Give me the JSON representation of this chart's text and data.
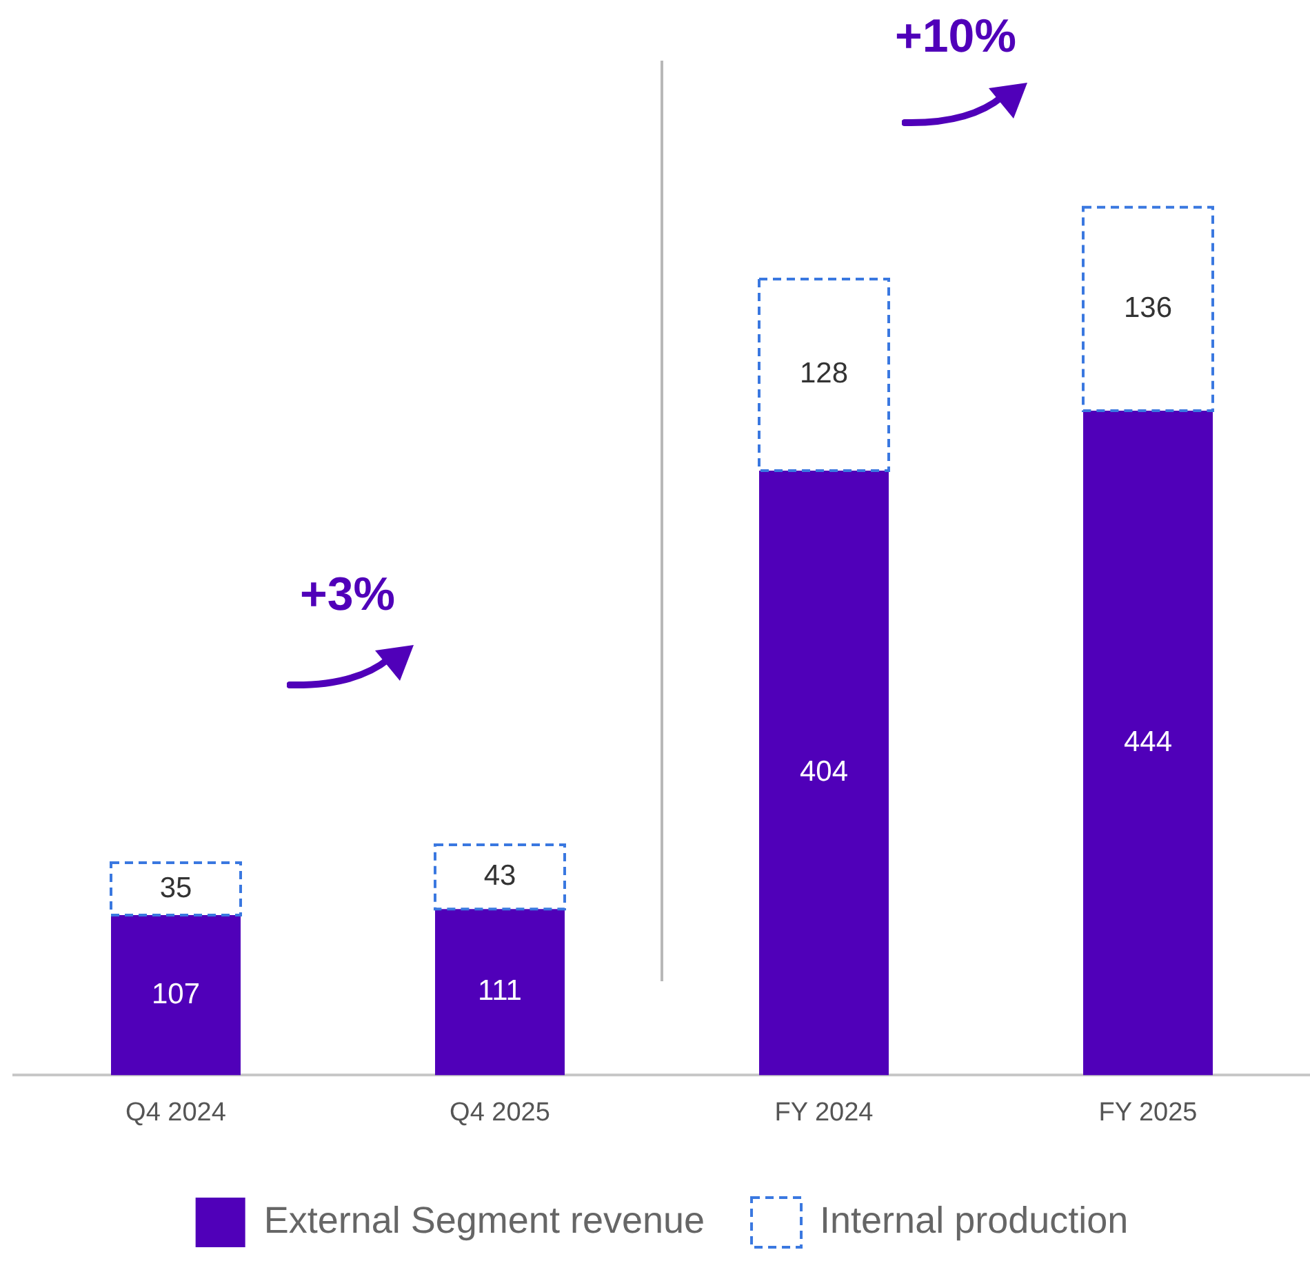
{
  "chart_data": {
    "type": "bar",
    "stacked": true,
    "categories": [
      "Q4 2024",
      "Q4 2025",
      "FY 2024",
      "FY 2025"
    ],
    "series": [
      {
        "name": "External Segment revenue",
        "color": "#5000b9",
        "values": [
          107,
          111,
          404,
          444
        ]
      },
      {
        "name": "Internal production",
        "color": "#3a78e0",
        "line_style": "dashed",
        "values": [
          35,
          43,
          128,
          136
        ]
      }
    ],
    "tick_labels": "x",
    "grid": false,
    "legend": "bottom",
    "data_labels": true,
    "annotations": [
      "+3%",
      "+10%"
    ]
  }
}
